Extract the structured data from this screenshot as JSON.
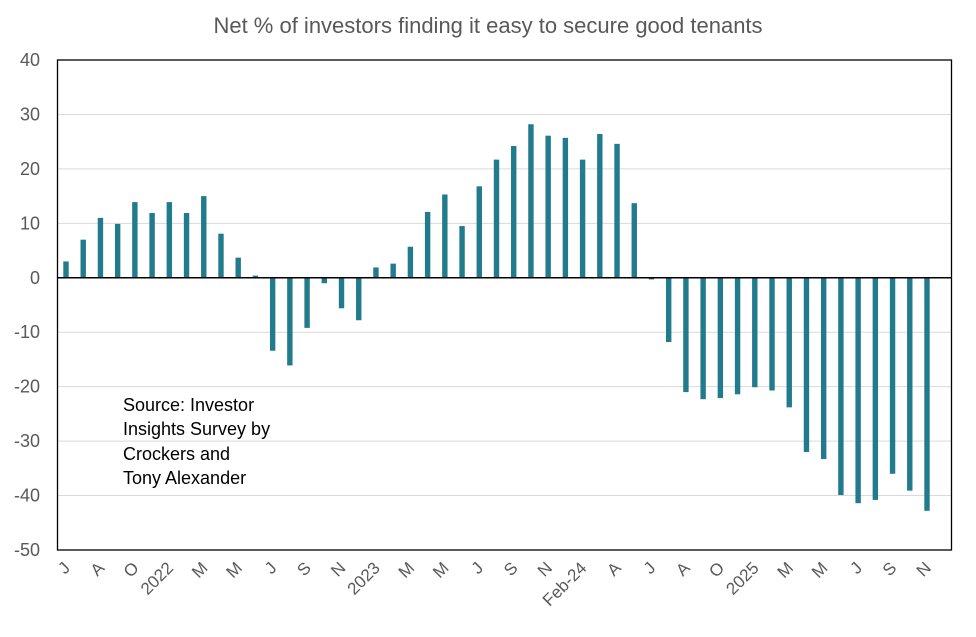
{
  "chart_data": {
    "type": "bar",
    "title": "Net % of investors finding it easy to secure good tenants",
    "xlabel": "",
    "ylabel": "",
    "ylim": [
      -50,
      40
    ],
    "yticks": [
      40,
      30,
      20,
      10,
      0,
      -10,
      -20,
      -30,
      -40,
      -50
    ],
    "grid": true,
    "bar_color": "#217b8c",
    "categories": [
      "J",
      "",
      "A",
      "",
      "O",
      "",
      "2022",
      "",
      "M",
      "",
      "M",
      "",
      "J",
      "",
      "S",
      "",
      "N",
      "",
      "2023",
      "",
      "M",
      "",
      "M",
      "",
      "J",
      "",
      "S",
      "",
      "N",
      "",
      "Feb-24",
      "",
      "A",
      "",
      "J",
      "",
      "A",
      "",
      "O",
      "",
      "2025",
      "",
      "M",
      "",
      "M",
      "",
      "J",
      "",
      "S",
      "",
      "N"
    ],
    "values": [
      3.0,
      7.0,
      11.0,
      9.9,
      13.9,
      11.9,
      13.9,
      11.9,
      15.0,
      8.1,
      3.7,
      0.4,
      -13.4,
      -16.1,
      -9.2,
      -1.0,
      -5.6,
      -7.8,
      1.9,
      2.6,
      5.7,
      12.1,
      15.3,
      9.5,
      16.8,
      21.7,
      24.2,
      28.2,
      26.1,
      25.7,
      21.7,
      26.4,
      24.6,
      13.7,
      -0.3,
      -11.8,
      -21.0,
      -22.3,
      -22.1,
      -21.4,
      -20.1,
      -20.7,
      -23.8,
      -32.0,
      -33.3,
      -39.9,
      -41.4,
      -40.8,
      -36.0,
      -39.1,
      -42.8
    ],
    "annotation": [
      "Source: Investor",
      "Insights Survey by",
      "Crockers and",
      "Tony Alexander"
    ]
  }
}
